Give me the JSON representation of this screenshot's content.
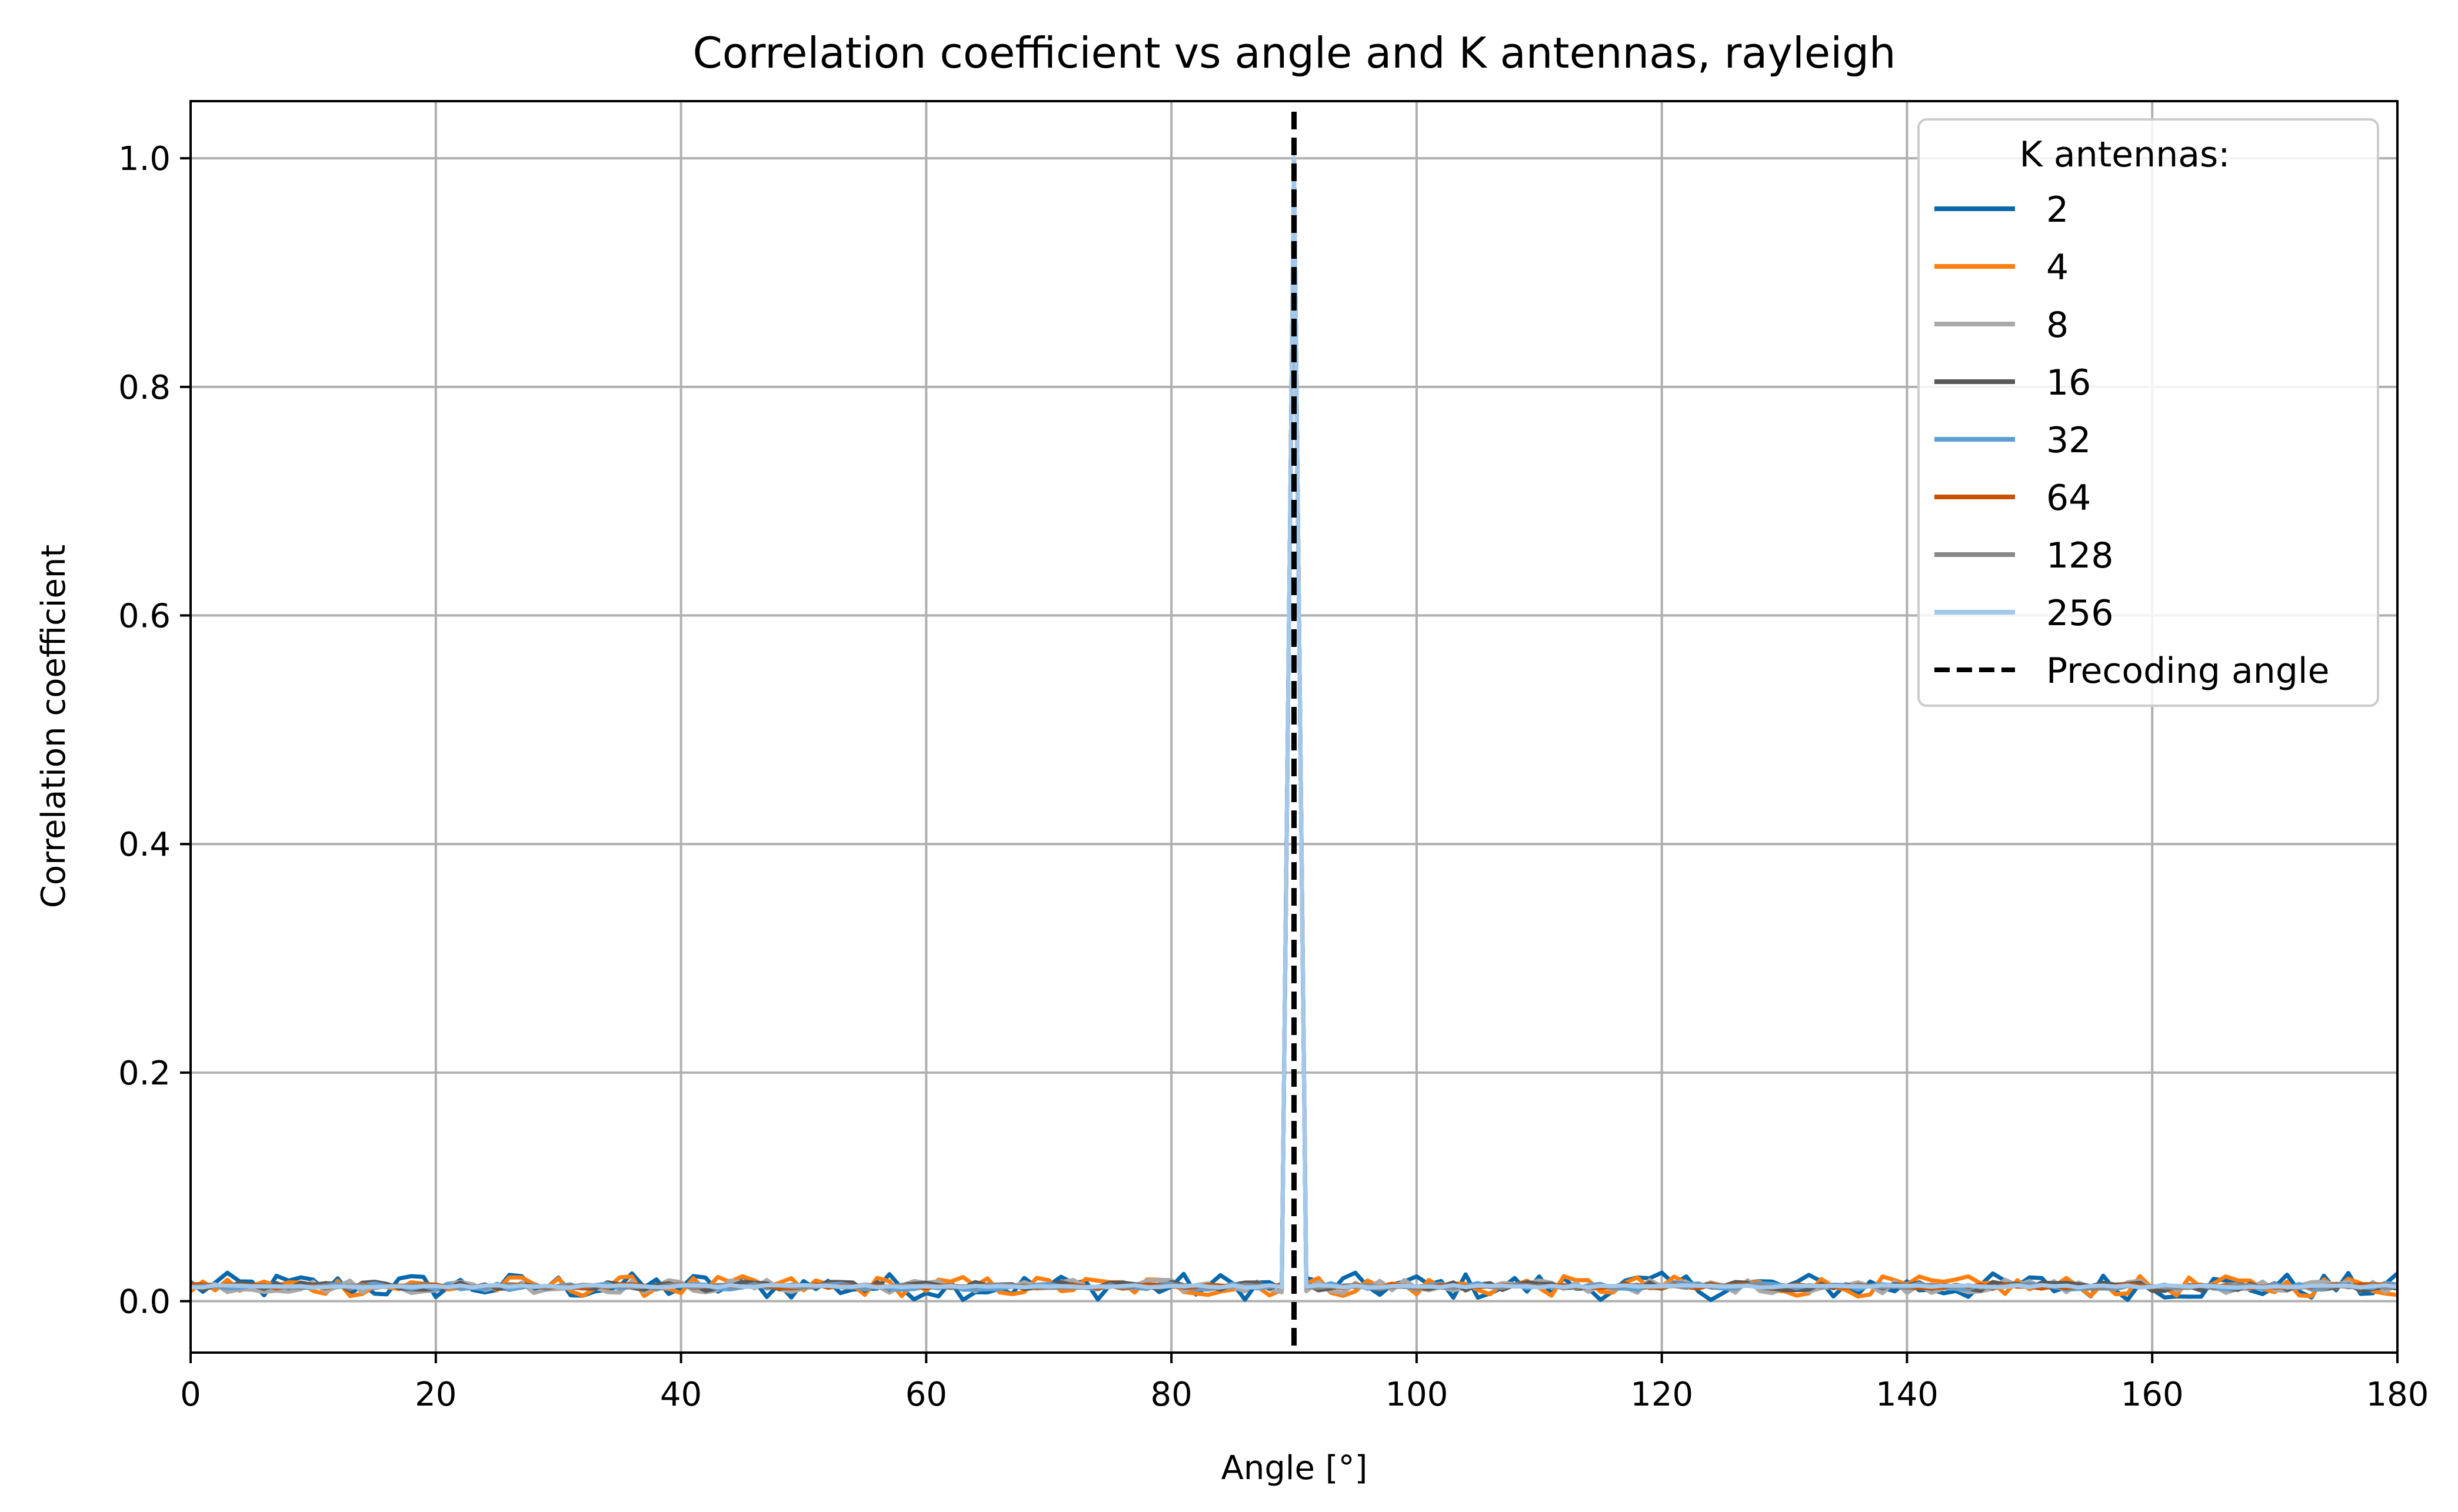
{
  "chart_data": {
    "type": "line",
    "title": "Correlation coefficient vs angle and K antennas, rayleigh",
    "xlabel": "Angle [°]",
    "ylabel": "Correlation coefficient",
    "xlim": [
      0,
      180
    ],
    "ylim": [
      -0.045,
      1.05
    ],
    "xticks": [
      0,
      20,
      40,
      60,
      80,
      100,
      120,
      140,
      160,
      180
    ],
    "xtick_labels": [
      "0",
      "20",
      "40",
      "60",
      "80",
      "100",
      "120",
      "140",
      "160",
      "180"
    ],
    "yticks": [
      0.0,
      0.2,
      0.4,
      0.6,
      0.8,
      1.0
    ],
    "ytick_labels": [
      "0.0",
      "0.2",
      "0.4",
      "0.6",
      "0.8",
      "1.0"
    ],
    "grid": true,
    "legend": {
      "title": "K antennas:",
      "position": "upper right",
      "entries": [
        "2",
        "4",
        "8",
        "16",
        "32",
        "64",
        "128",
        "256",
        "Precoding angle"
      ]
    },
    "peak_angle": 90,
    "peak_value": 1.0,
    "baseline_value": 0.013,
    "series": [
      {
        "name": "2",
        "color": "#0868ac",
        "noise_amplitude": 0.012
      },
      {
        "name": "4",
        "color": "#ff7f0e",
        "noise_amplitude": 0.009
      },
      {
        "name": "8",
        "color": "#a9a9a9",
        "noise_amplitude": 0.006
      },
      {
        "name": "16",
        "color": "#595959",
        "noise_amplitude": 0.004
      },
      {
        "name": "32",
        "color": "#5f9ed1",
        "noise_amplitude": 0.003
      },
      {
        "name": "64",
        "color": "#c85200",
        "noise_amplitude": 0.002
      },
      {
        "name": "128",
        "color": "#898989",
        "noise_amplitude": 0.0015
      },
      {
        "name": "256",
        "color": "#a2c8ec",
        "noise_amplitude": 0.001
      }
    ],
    "reference_line": {
      "name": "Precoding angle",
      "x": 90,
      "color": "#000000",
      "style": "dashed"
    }
  }
}
